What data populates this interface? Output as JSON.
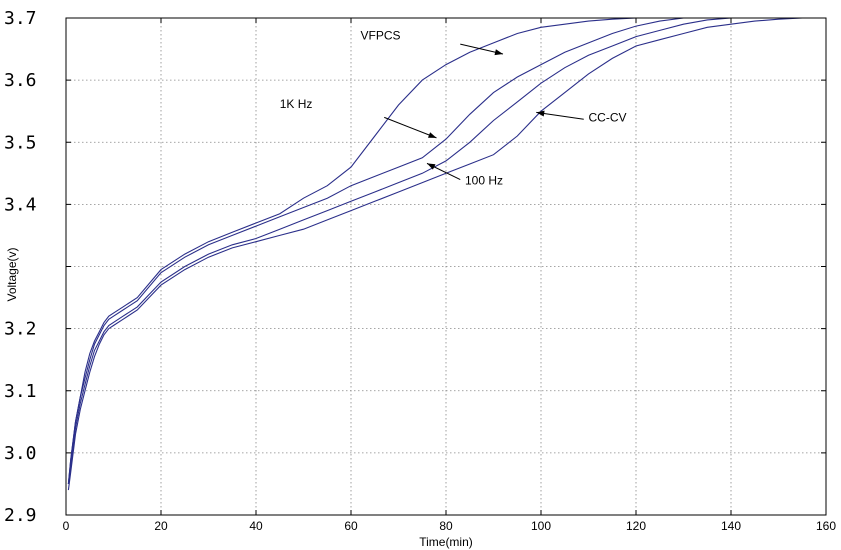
{
  "chart_data": {
    "type": "line",
    "title": "",
    "xlabel": "Time(min)",
    "ylabel": "Voltage(v)",
    "xlim": [
      0,
      160
    ],
    "ylim": [
      2.9,
      3.7
    ],
    "x_ticks": [
      0,
      20,
      40,
      60,
      80,
      100,
      120,
      140,
      160
    ],
    "x_tick_labels": [
      "0",
      "20",
      "40",
      "60",
      "80",
      "100",
      "120",
      "140",
      "160"
    ],
    "y_ticks": [
      2.9,
      3.0,
      3.1,
      3.2,
      3.3,
      3.4,
      3.5,
      3.6,
      3.7
    ],
    "y_tick_labels": [
      "2.9",
      "3.0",
      "3.1",
      "3.2",
      "",
      "3.4",
      "3.5",
      "3.6",
      "3.7"
    ],
    "grid": true,
    "line_color": "#2b2f8a",
    "series": [
      {
        "name": "VFPCS",
        "x": [
          0.5,
          1,
          2,
          3,
          4,
          5,
          6,
          7,
          8,
          9,
          10,
          12,
          15,
          20,
          25,
          30,
          35,
          40,
          45,
          50,
          55,
          60,
          65,
          70,
          75,
          80,
          85,
          90,
          95,
          100,
          105,
          110,
          115,
          120
        ],
        "y": [
          2.95,
          2.99,
          3.05,
          3.09,
          3.13,
          3.16,
          3.18,
          3.195,
          3.21,
          3.22,
          3.225,
          3.235,
          3.25,
          3.295,
          3.32,
          3.34,
          3.355,
          3.37,
          3.385,
          3.41,
          3.43,
          3.46,
          3.51,
          3.56,
          3.6,
          3.625,
          3.645,
          3.66,
          3.675,
          3.685,
          3.69,
          3.695,
          3.698,
          3.7
        ]
      },
      {
        "name": "1K Hz",
        "x": [
          0.5,
          1,
          2,
          3,
          4,
          5,
          6,
          7,
          8,
          9,
          10,
          12,
          15,
          20,
          25,
          30,
          35,
          40,
          45,
          50,
          55,
          60,
          65,
          70,
          75,
          80,
          85,
          90,
          95,
          100,
          105,
          110,
          115,
          120,
          125,
          130
        ],
        "y": [
          2.95,
          2.99,
          3.05,
          3.09,
          3.12,
          3.15,
          3.175,
          3.19,
          3.205,
          3.215,
          3.22,
          3.23,
          3.245,
          3.29,
          3.315,
          3.335,
          3.35,
          3.365,
          3.38,
          3.395,
          3.41,
          3.43,
          3.445,
          3.46,
          3.475,
          3.505,
          3.545,
          3.58,
          3.605,
          3.625,
          3.645,
          3.66,
          3.675,
          3.687,
          3.695,
          3.7
        ]
      },
      {
        "name": "100 Hz",
        "x": [
          0.5,
          1,
          2,
          3,
          4,
          5,
          6,
          7,
          8,
          9,
          10,
          12,
          15,
          20,
          25,
          30,
          35,
          40,
          45,
          50,
          55,
          60,
          65,
          70,
          75,
          80,
          85,
          90,
          95,
          100,
          105,
          110,
          115,
          120,
          125,
          130,
          135,
          140
        ],
        "y": [
          2.95,
          2.98,
          3.04,
          3.08,
          3.11,
          3.14,
          3.165,
          3.18,
          3.195,
          3.205,
          3.21,
          3.22,
          3.235,
          3.275,
          3.3,
          3.32,
          3.335,
          3.345,
          3.36,
          3.375,
          3.39,
          3.405,
          3.42,
          3.435,
          3.45,
          3.47,
          3.5,
          3.535,
          3.565,
          3.595,
          3.62,
          3.64,
          3.655,
          3.67,
          3.68,
          3.69,
          3.697,
          3.7
        ]
      },
      {
        "name": "CC-CV",
        "x": [
          0.5,
          1,
          2,
          3,
          4,
          5,
          6,
          7,
          8,
          9,
          10,
          12,
          15,
          20,
          25,
          30,
          35,
          40,
          45,
          50,
          55,
          60,
          65,
          70,
          75,
          80,
          85,
          90,
          95,
          100,
          105,
          110,
          115,
          120,
          125,
          130,
          135,
          140,
          145,
          150,
          155
        ],
        "y": [
          2.94,
          2.97,
          3.03,
          3.07,
          3.1,
          3.13,
          3.155,
          3.175,
          3.19,
          3.2,
          3.205,
          3.215,
          3.23,
          3.27,
          3.295,
          3.315,
          3.33,
          3.34,
          3.35,
          3.36,
          3.375,
          3.39,
          3.405,
          3.42,
          3.435,
          3.45,
          3.465,
          3.48,
          3.51,
          3.55,
          3.58,
          3.61,
          3.635,
          3.655,
          3.665,
          3.675,
          3.685,
          3.69,
          3.695,
          3.698,
          3.7
        ]
      }
    ],
    "annotations": [
      {
        "text": "VFPCS",
        "x": 62,
        "y": 3.665,
        "arrow_from": [
          83,
          3.658
        ],
        "arrow_to": [
          92,
          3.642
        ]
      },
      {
        "text": "1K Hz",
        "x": 45,
        "y": 3.555,
        "arrow_from": [
          67,
          3.54
        ],
        "arrow_to": [
          78,
          3.507
        ]
      },
      {
        "text": "100 Hz",
        "x": 84,
        "y": 3.432,
        "arrow_from": [
          83,
          3.44
        ],
        "arrow_to": [
          76,
          3.466
        ]
      },
      {
        "text": "CC-CV",
        "x": 110,
        "y": 3.533,
        "arrow_from": [
          109,
          3.537
        ],
        "arrow_to": [
          99,
          3.548
        ]
      }
    ]
  }
}
